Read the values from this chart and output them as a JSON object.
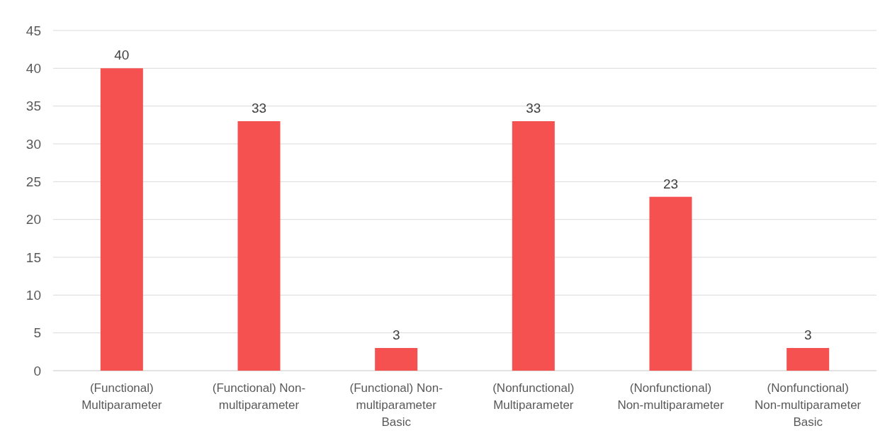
{
  "chart_data": {
    "type": "bar",
    "categories": [
      "(Functional) Multiparameter",
      "(Functional) Non-multiparameter",
      "(Functional) Non-multiparameter Basic",
      "(Nonfunctional) Multiparameter",
      "(Nonfunctional) Non-multiparameter",
      "(Nonfunctional) Non-multiparameter Basic"
    ],
    "values": [
      40,
      33,
      3,
      33,
      23,
      3
    ],
    "color": "#f65151",
    "ylim": [
      0,
      45
    ],
    "yticks": [
      0,
      5,
      10,
      15,
      20,
      25,
      30,
      35,
      40,
      45
    ],
    "grid": "y",
    "data_labels": true
  }
}
